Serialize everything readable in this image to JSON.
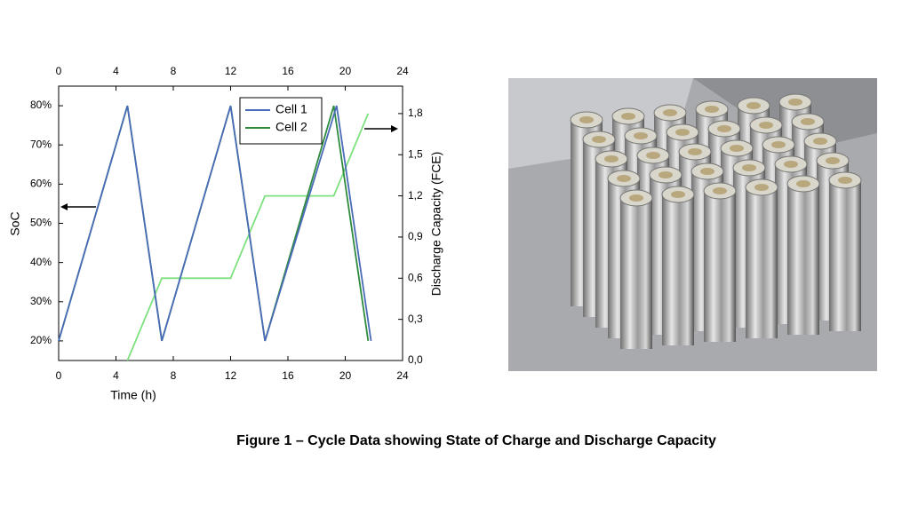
{
  "chart_data": {
    "type": "line",
    "xlabel": "Time (h)",
    "ylabel": "SoC",
    "y2label": "Discharge Capacity (FCE)",
    "xlim": [
      0,
      24
    ],
    "xticks": [
      0,
      4,
      8,
      12,
      16,
      20,
      24
    ],
    "ylim": [
      15,
      85
    ],
    "yticks": [
      {
        "value": 20,
        "label": "20%"
      },
      {
        "value": 30,
        "label": "30%"
      },
      {
        "value": 40,
        "label": "40%"
      },
      {
        "value": 50,
        "label": "50%"
      },
      {
        "value": 60,
        "label": "60%"
      },
      {
        "value": 70,
        "label": "70%"
      },
      {
        "value": 80,
        "label": "80%"
      }
    ],
    "y2lim": [
      0,
      2
    ],
    "y2ticks": [
      {
        "value": 0,
        "label": "0,0"
      },
      {
        "value": 0.3,
        "label": "0,3"
      },
      {
        "value": 0.6,
        "label": "0,6"
      },
      {
        "value": 0.9,
        "label": "0,9"
      },
      {
        "value": 1.2,
        "label": "1,2"
      },
      {
        "value": 1.5,
        "label": "1,5"
      },
      {
        "value": 1.8,
        "label": "1,8"
      }
    ],
    "legend": "top-right",
    "series": [
      {
        "name": "Cell 1",
        "color": "#4a6bb8",
        "x": [
          0,
          4.8,
          7.2,
          12,
          14.4,
          19.4,
          21.8
        ],
        "values": [
          20,
          80,
          20,
          80,
          20,
          80,
          20
        ]
      },
      {
        "name": "Cell 2",
        "color": "#2e8b3e",
        "x": [
          0,
          4.8,
          7.2,
          12,
          14.4,
          19.2,
          21.6
        ],
        "values": [
          20,
          80,
          20,
          80,
          20,
          80,
          20
        ]
      },
      {
        "color": "#7ee07e",
        "axis": "y2",
        "x": [
          4.8,
          7.2,
          12,
          14.4,
          19.2,
          21.6
        ],
        "values": [
          0,
          0.6,
          0.6,
          1.2,
          1.2,
          1.8
        ]
      }
    ]
  },
  "caption": "Figure 1 – Cycle Data showing State of Charge and Discharge Capacity"
}
